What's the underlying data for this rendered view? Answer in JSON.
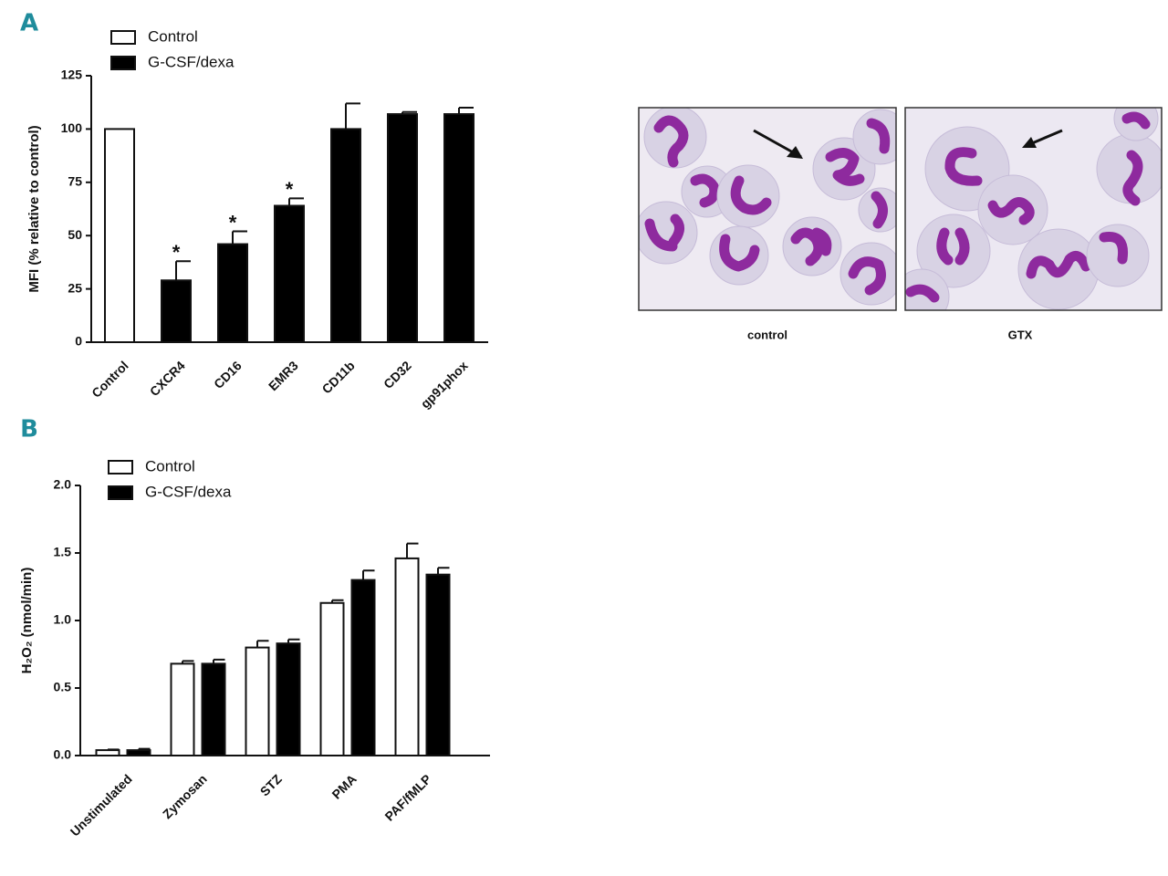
{
  "panels": [
    "A",
    "B"
  ],
  "images": {
    "captions": [
      "control",
      "GTX"
    ]
  },
  "chart_data": [
    {
      "type": "bar",
      "ylabel": "MFI (% relative to control)",
      "categories": [
        "Control",
        "CXCR4",
        "CD16",
        "EMR3",
        "CD11b",
        "CD32",
        "gp91phox"
      ],
      "series": [
        {
          "name": "Control",
          "color": "#ffffff",
          "values": [
            100,
            null,
            null,
            null,
            null,
            null,
            null
          ],
          "errors": [
            null,
            null,
            null,
            null,
            null,
            null,
            null
          ]
        },
        {
          "name": "G-CSF/dexa",
          "color": "#000000",
          "values": [
            null,
            29,
            46,
            64,
            100,
            107,
            107
          ],
          "errors": [
            null,
            9,
            6,
            3.5,
            12,
            1,
            3
          ]
        }
      ],
      "annotations": [
        {
          "category": "CXCR4",
          "text": "*"
        },
        {
          "category": "CD16",
          "text": "*"
        },
        {
          "category": "EMR3",
          "text": "*"
        }
      ],
      "ylim": [
        0,
        125
      ],
      "yticks": [
        0,
        25,
        50,
        75,
        100,
        125
      ],
      "legend": "top-left"
    },
    {
      "type": "bar",
      "ylabel": "H₂O₂ (nmol/min)",
      "categories": [
        "Unstimulated",
        "Zymosan",
        "STZ",
        "PMA",
        "PAF/fMLP"
      ],
      "series": [
        {
          "name": "Control",
          "color": "#ffffff",
          "values": [
            0.04,
            0.68,
            0.8,
            1.13,
            1.46
          ],
          "errors": [
            0.005,
            0.02,
            0.05,
            0.02,
            0.11
          ]
        },
        {
          "name": "G-CSF/dexa",
          "color": "#000000",
          "values": [
            0.04,
            0.68,
            0.83,
            1.3,
            1.34
          ],
          "errors": [
            0.01,
            0.03,
            0.03,
            0.07,
            0.05
          ]
        }
      ],
      "ylim": [
        0,
        2
      ],
      "yticks": [
        {
          "value": 0,
          "label": "0.0"
        },
        0.5,
        {
          "value": 1,
          "label": "1.0"
        },
        1.5,
        {
          "value": 2,
          "label": "2.0"
        }
      ],
      "legend": "top-left"
    }
  ]
}
